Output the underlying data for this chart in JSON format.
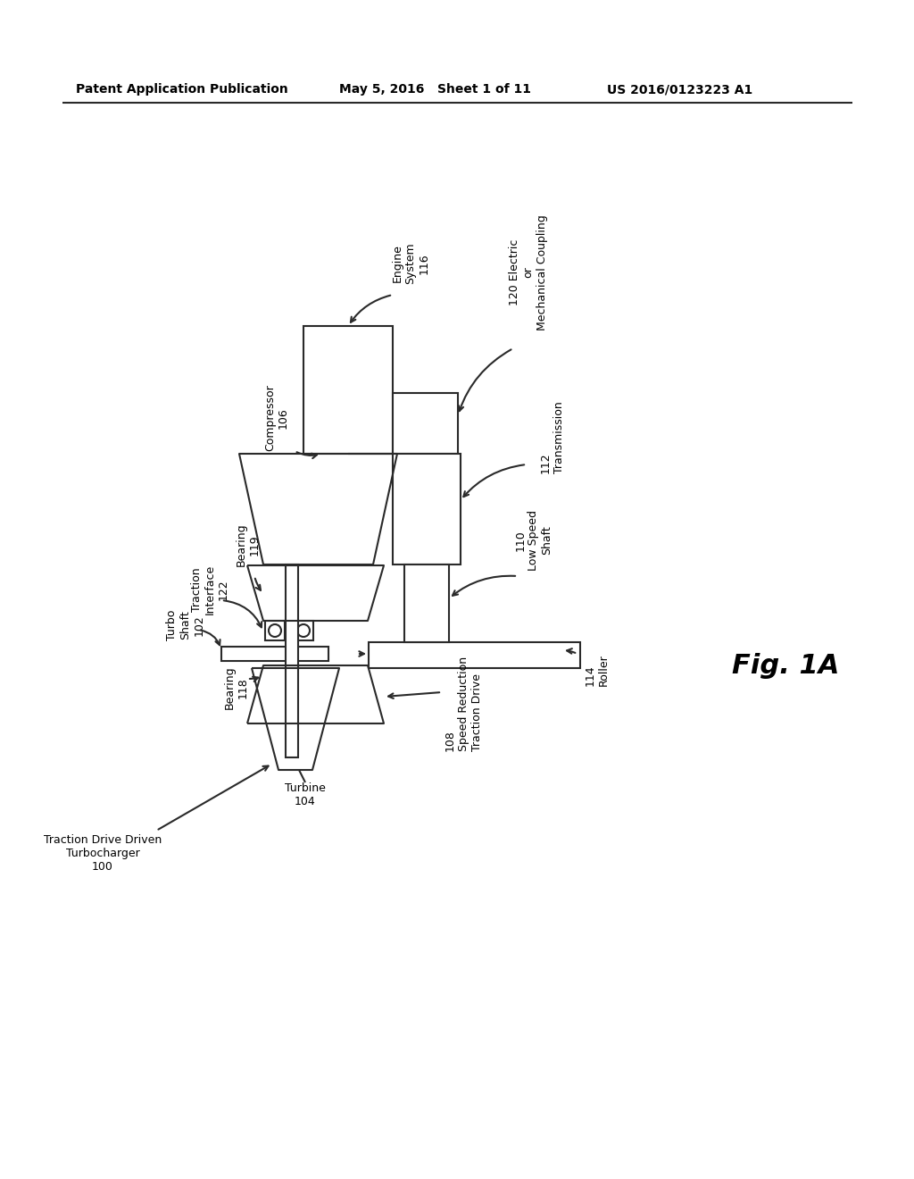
{
  "bg_color": "#ffffff",
  "lc": "#2a2a2a",
  "header_left": "Patent Application Publication",
  "header_mid": "May 5, 2016   Sheet 1 of 11",
  "header_right": "US 2016/0123223 A1",
  "fig_label": "Fig. 1A",
  "labels": {
    "turbo_shaft": "Turbo\nShaft\n102",
    "turbine": "Turbine\n104",
    "compressor": "Compressor\n106",
    "speed_reduction": "108\nSpeed Reduction\nTraction Drive",
    "bearing118": "Bearing\n118",
    "bearing119": "Bearing\n119",
    "traction_interface": "Traction\nInterface\n122",
    "low_speed_shaft": "110\nLow Speed\nShaft",
    "transmission": "112\nTransmission",
    "engine_system": "Engine\nSystem\n116",
    "coupling": "120 Electric\nor\nMechanical Coupling",
    "roller": "114\nRoller",
    "traction_drive": "Traction Drive Driven\nTurbocharger\n100"
  }
}
